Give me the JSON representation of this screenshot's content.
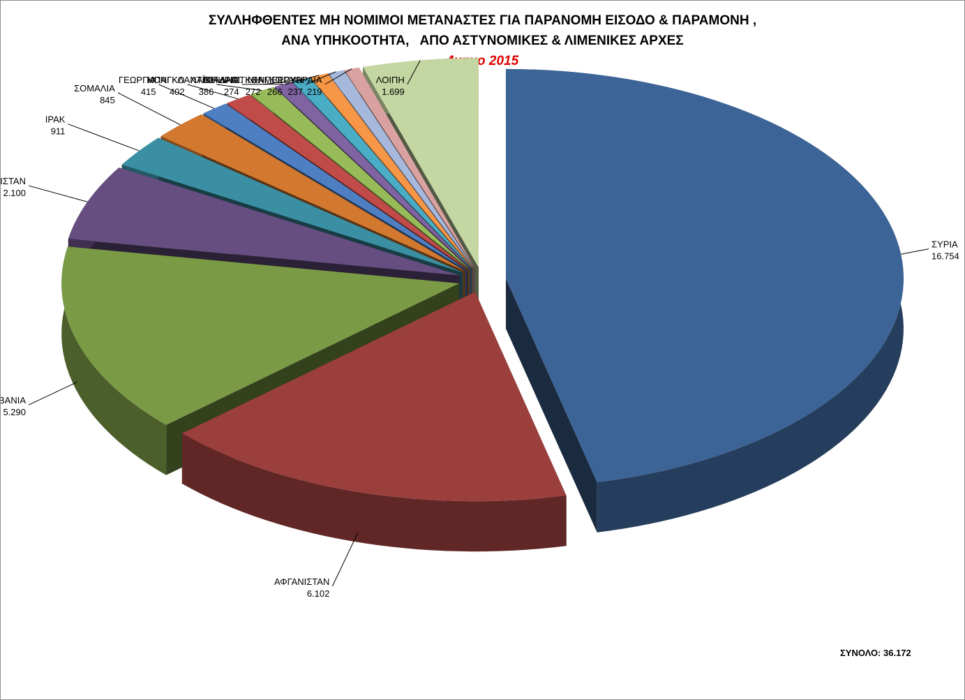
{
  "title": {
    "line1": "ΣΥΛΛΗΦΘΕΝΤΕΣ ΜΗ ΝΟΜΙΜΟΙ ΜΕΤΑΝΑΣΤΕΣ ΓΙΑ ΠΑΡΑΝΟΜΗ ΕΙΣΟΔΟ & ΠΑΡΑΜΟΝΗ ,",
    "line2": "ΑΝΑ ΥΠΗΚΟΟΤΗΤΑ,   ΑΠΟ ΑΣΤΥΝΟΜΙΚΕΣ & ΛΙΜΕΝΙΚΕΣ ΑΡΧΕΣ",
    "line3": "4μηνο 2015"
  },
  "total_label": "ΣΥΝΟΛΟ: 36.172",
  "chart_data": {
    "type": "pie",
    "style": "3D exploded pie",
    "title": "ΣΥΛΛΗΦΘΕΝΤΕΣ ΜΗ ΝΟΜΙΜΟΙ ΜΕΤΑΝΑΣΤΕΣ ΓΙΑ ΠΑΡΑΝΟΜΗ ΕΙΣΟΔΟ & ΠΑΡΑΜΟΝΗ , ΑΝΑ ΥΠΗΚΟΟΤΗΤΑ, ΑΠΟ ΑΣΤΥΝΟΜΙΚΕΣ & ΛΙΜΕΝΙΚΕΣ ΑΡΧΕΣ",
    "subtitle": "4μηνο 2015",
    "total": 36172,
    "slices": [
      {
        "label": "ΣΥΡΙΑ",
        "value": 16754,
        "value_text": "16.754",
        "color": "#3d6496"
      },
      {
        "label": "ΑΦΓΑΝΙΣΤΑΝ",
        "value": 6102,
        "value_text": "6.102",
        "color": "#9b3f3d"
      },
      {
        "label": "ΑΛΒΑΝΙΑ",
        "value": 5290,
        "value_text": "5.290",
        "color": "#7a9a46"
      },
      {
        "label": "ΠΑΚΙΣΤΑΝ",
        "value": 2100,
        "value_text": "2.100",
        "color": "#664e80"
      },
      {
        "label": "ΙΡΑΚ",
        "value": 911,
        "value_text": "911",
        "color": "#3a8fa3"
      },
      {
        "label": "ΣΟΜΑΛΙΑ",
        "value": 845,
        "value_text": "845",
        "color": "#d2792f"
      },
      {
        "label": "ΓΕΩΡΓΙΑ",
        "value": 415,
        "value_text": "415",
        "color": "#4e7fc2"
      },
      {
        "label": "ΚΟΝΓΚΟ",
        "value": 402,
        "value_text": "402",
        "color": "#c14b49"
      },
      {
        "label": "ΜΠΑΓΚΛΑΝΤΕΣ",
        "value": 386,
        "value_text": "386",
        "color": "#98bb59"
      },
      {
        "label": "ΝΙΓΗΡΙΑ",
        "value": 274,
        "value_text": "274",
        "color": "#8064a2"
      },
      {
        "label": "ΠΑΛΑΙΣΤΙΝΗ",
        "value": 272,
        "value_text": "272",
        "color": "#4aacc5"
      },
      {
        "label": "ΛΑΪΚΗ ΔΗΜ. ΚΟΝΓΚΟ",
        "value": 266,
        "value_text": "266",
        "color": "#f79646"
      },
      {
        "label": "ΚΑΜΕΡΟΥΝ",
        "value": 237,
        "value_text": "237",
        "color": "#a6b9dd"
      },
      {
        "label": "ΕΡΥΘΡΑΙΑ",
        "value": 219,
        "value_text": "219",
        "color": "#d9a2a1"
      },
      {
        "label": "ΛΟΙΠΗ",
        "value": 1699,
        "value_text": "1.699",
        "color": "#c4d6a1"
      }
    ]
  }
}
